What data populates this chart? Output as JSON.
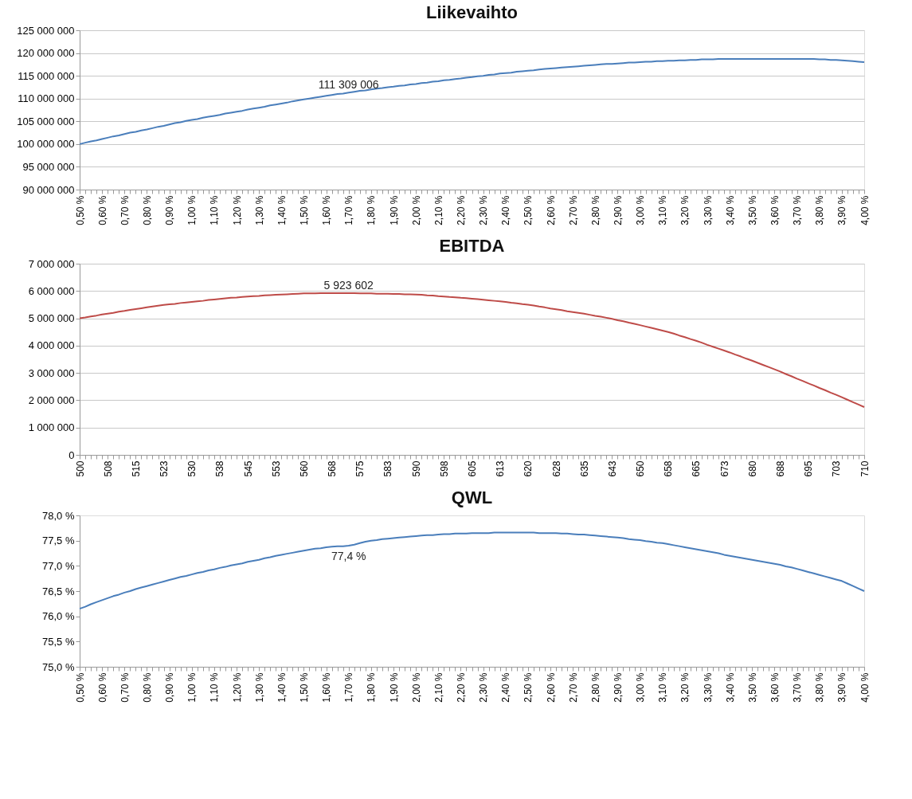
{
  "chart_data": [
    {
      "type": "line",
      "title": "Liikevaihto",
      "categories": [
        "0,50 %",
        null,
        null,
        null,
        "0,60 %",
        null,
        null,
        null,
        "0,70 %",
        null,
        null,
        null,
        "0,80 %",
        null,
        null,
        null,
        "0,90 %",
        null,
        null,
        null,
        "1,00 %",
        null,
        null,
        null,
        "1,10 %",
        null,
        null,
        null,
        "1,20 %",
        null,
        null,
        null,
        "1,30 %",
        null,
        null,
        null,
        "1,40 %",
        null,
        null,
        null,
        "1,50 %",
        null,
        null,
        null,
        "1,60 %",
        null,
        null,
        null,
        "1,70 %",
        null,
        null,
        null,
        "1,80 %",
        null,
        null,
        null,
        "1,90 %",
        null,
        null,
        null,
        "2,00 %",
        null,
        null,
        null,
        "2,10 %",
        null,
        null,
        null,
        "2,20 %",
        null,
        null,
        null,
        "2,30 %",
        null,
        null,
        null,
        "2,40 %",
        null,
        null,
        null,
        "2,50 %",
        null,
        null,
        null,
        "2,60 %",
        null,
        null,
        null,
        "2,70 %",
        null,
        null,
        null,
        "2,80 %",
        null,
        null,
        null,
        "2,90 %",
        null,
        null,
        null,
        "3,00 %",
        null,
        null,
        null,
        "3,10 %",
        null,
        null,
        null,
        "3,20 %",
        null,
        null,
        null,
        "3,30 %",
        null,
        null,
        null,
        "3,40 %",
        null,
        null,
        null,
        "3,50 %",
        null,
        null,
        null,
        "3,60 %",
        null,
        null,
        null,
        "3,70 %",
        null,
        null,
        null,
        "3,80 %",
        null,
        null,
        null,
        "3,90 %",
        null,
        null,
        null,
        "4,00 %"
      ],
      "series": [
        {
          "color": "#4a7ebb",
          "values": [
            100000000,
            100300000,
            100600000,
            100800000,
            101100000,
            101400000,
            101700000,
            101900000,
            102200000,
            102500000,
            102700000,
            103000000,
            103200000,
            103500000,
            103800000,
            104000000,
            104300000,
            104600000,
            104800000,
            105100000,
            105300000,
            105500000,
            105800000,
            106000000,
            106200000,
            106400000,
            106700000,
            106900000,
            107100000,
            107300000,
            107600000,
            107800000,
            108000000,
            108200000,
            108500000,
            108700000,
            108900000,
            109100000,
            109400000,
            109600000,
            109800000,
            110000000,
            110200000,
            110400000,
            110600000,
            110800000,
            111000000,
            111100000,
            111309006,
            111500000,
            111700000,
            111800000,
            112000000,
            112200000,
            112300000,
            112500000,
            112600000,
            112800000,
            112900000,
            113100000,
            113200000,
            113400000,
            113500000,
            113700000,
            113800000,
            114000000,
            114100000,
            114300000,
            114400000,
            114600000,
            114700000,
            114900000,
            115000000,
            115200000,
            115300000,
            115500000,
            115600000,
            115700000,
            115900000,
            116000000,
            116100000,
            116200000,
            116400000,
            116500000,
            116600000,
            116700000,
            116800000,
            116900000,
            117000000,
            117100000,
            117200000,
            117300000,
            117400000,
            117500000,
            117600000,
            117600000,
            117700000,
            117800000,
            117900000,
            117900000,
            118000000,
            118100000,
            118100000,
            118200000,
            118200000,
            118300000,
            118300000,
            118400000,
            118400000,
            118500000,
            118500000,
            118600000,
            118600000,
            118600000,
            118700000,
            118700000,
            118700000,
            118700000,
            118700000,
            118700000,
            118700000,
            118700000,
            118700000,
            118700000,
            118700000,
            118700000,
            118700000,
            118700000,
            118700000,
            118700000,
            118700000,
            118700000,
            118600000,
            118600000,
            118500000,
            118500000,
            118400000,
            118300000,
            118200000,
            118100000,
            118000000
          ],
          "value_labels": [
            null,
            null,
            null,
            null,
            null,
            null,
            null,
            null,
            null,
            null,
            null,
            null,
            null,
            null,
            null,
            null,
            null,
            null,
            null,
            null,
            null,
            null,
            null,
            null,
            null,
            null,
            null,
            null,
            null,
            null,
            null,
            null,
            null,
            null,
            null,
            null,
            null,
            null,
            null,
            null,
            null,
            null,
            null,
            null,
            null,
            null,
            null,
            null,
            "111 309 006",
            null,
            null,
            null,
            null,
            null,
            null,
            null,
            null,
            null,
            null,
            null,
            null,
            null,
            null,
            null,
            null,
            null,
            null,
            null,
            null,
            null,
            null,
            null,
            null,
            null,
            null,
            null,
            null,
            null,
            null,
            null,
            null,
            null,
            null,
            null,
            null,
            null,
            null,
            null,
            null,
            null,
            null,
            null,
            null,
            null,
            null,
            null,
            null,
            null,
            null,
            null,
            null,
            null,
            null,
            null,
            null,
            null,
            null,
            null,
            null,
            null,
            null,
            null,
            null,
            null,
            null,
            null,
            null,
            null,
            null,
            null,
            null,
            null,
            null,
            null,
            null,
            null,
            null,
            null,
            null,
            null,
            null,
            null,
            null,
            null,
            null,
            null,
            null,
            null,
            null,
            null,
            null
          ]
        }
      ],
      "ylim": [
        90000000,
        125000000
      ],
      "yticks": [
        {
          "value": 90000000,
          "label": "90 000 000"
        },
        {
          "value": 95000000,
          "label": "95 000 000"
        },
        {
          "value": 100000000,
          "label": "100 000 000"
        },
        {
          "value": 105000000,
          "label": "105 000 000"
        },
        {
          "value": 110000000,
          "label": "110 000 000"
        },
        {
          "value": 115000000,
          "label": "115 000 000"
        },
        {
          "value": 120000000,
          "label": "120 000 000"
        },
        {
          "value": 125000000,
          "label": "125 000 000"
        }
      ],
      "grid": "y"
    },
    {
      "type": "line",
      "title": "EBITDA",
      "categories": [
        "500",
        null,
        null,
        null,
        null,
        "508",
        null,
        null,
        null,
        null,
        "515",
        null,
        null,
        null,
        null,
        "523",
        null,
        null,
        null,
        null,
        "530",
        null,
        null,
        null,
        null,
        "538",
        null,
        null,
        null,
        null,
        "545",
        null,
        null,
        null,
        null,
        "553",
        null,
        null,
        null,
        null,
        "560",
        null,
        null,
        null,
        null,
        "568",
        null,
        null,
        null,
        null,
        "575",
        null,
        null,
        null,
        null,
        "583",
        null,
        null,
        null,
        null,
        "590",
        null,
        null,
        null,
        null,
        "598",
        null,
        null,
        null,
        null,
        "605",
        null,
        null,
        null,
        null,
        "613",
        null,
        null,
        null,
        null,
        "620",
        null,
        null,
        null,
        null,
        "628",
        null,
        null,
        null,
        null,
        "635",
        null,
        null,
        null,
        null,
        "643",
        null,
        null,
        null,
        null,
        "650",
        null,
        null,
        null,
        null,
        "658",
        null,
        null,
        null,
        null,
        "665",
        null,
        null,
        null,
        null,
        "673",
        null,
        null,
        null,
        null,
        "680",
        null,
        null,
        null,
        null,
        "688",
        null,
        null,
        null,
        null,
        "695",
        null,
        null,
        null,
        null,
        "703",
        null,
        null,
        null,
        null,
        "710"
      ],
      "series": [
        {
          "color": "#be4b48",
          "values": [
            5000000,
            5030000,
            5070000,
            5100000,
            5140000,
            5170000,
            5200000,
            5240000,
            5270000,
            5310000,
            5340000,
            5370000,
            5400000,
            5430000,
            5460000,
            5490000,
            5510000,
            5530000,
            5560000,
            5580000,
            5600000,
            5620000,
            5640000,
            5670000,
            5690000,
            5710000,
            5730000,
            5750000,
            5760000,
            5780000,
            5800000,
            5810000,
            5820000,
            5840000,
            5850000,
            5860000,
            5870000,
            5880000,
            5890000,
            5900000,
            5910000,
            5910000,
            5910000,
            5920000,
            5920000,
            5920000,
            5920000,
            5920000,
            5923602,
            5920000,
            5910000,
            5910000,
            5910000,
            5900000,
            5900000,
            5900000,
            5890000,
            5890000,
            5880000,
            5880000,
            5870000,
            5860000,
            5840000,
            5830000,
            5810000,
            5800000,
            5780000,
            5770000,
            5750000,
            5740000,
            5720000,
            5700000,
            5680000,
            5660000,
            5640000,
            5620000,
            5600000,
            5570000,
            5550000,
            5520000,
            5500000,
            5470000,
            5430000,
            5400000,
            5360000,
            5330000,
            5300000,
            5260000,
            5230000,
            5200000,
            5170000,
            5130000,
            5090000,
            5060000,
            5020000,
            4980000,
            4930000,
            4890000,
            4840000,
            4800000,
            4750000,
            4700000,
            4650000,
            4600000,
            4550000,
            4500000,
            4440000,
            4370000,
            4310000,
            4240000,
            4180000,
            4110000,
            4030000,
            3960000,
            3890000,
            3820000,
            3750000,
            3670000,
            3600000,
            3520000,
            3450000,
            3370000,
            3290000,
            3210000,
            3130000,
            3050000,
            2960000,
            2880000,
            2790000,
            2710000,
            2620000,
            2540000,
            2450000,
            2370000,
            2280000,
            2200000,
            2110000,
            2020000,
            1930000,
            1840000,
            1750000
          ],
          "value_labels": [
            null,
            null,
            null,
            null,
            null,
            null,
            null,
            null,
            null,
            null,
            null,
            null,
            null,
            null,
            null,
            null,
            null,
            null,
            null,
            null,
            null,
            null,
            null,
            null,
            null,
            null,
            null,
            null,
            null,
            null,
            null,
            null,
            null,
            null,
            null,
            null,
            null,
            null,
            null,
            null,
            null,
            null,
            null,
            null,
            null,
            null,
            null,
            null,
            "5 923 602",
            null,
            null,
            null,
            null,
            null,
            null,
            null,
            null,
            null,
            null,
            null,
            null,
            null,
            null,
            null,
            null,
            null,
            null,
            null,
            null,
            null,
            null,
            null,
            null,
            null,
            null,
            null,
            null,
            null,
            null,
            null,
            null,
            null,
            null,
            null,
            null,
            null,
            null,
            null,
            null,
            null,
            null,
            null,
            null,
            null,
            null,
            null,
            null,
            null,
            null,
            null,
            null,
            null,
            null,
            null,
            null,
            null,
            null,
            null,
            null,
            null,
            null,
            null,
            null,
            null,
            null,
            null,
            null,
            null,
            null,
            null,
            null,
            null,
            null,
            null,
            null,
            null,
            null,
            null,
            null,
            null,
            null,
            null,
            null,
            null,
            null,
            null,
            null,
            null,
            null,
            null,
            null
          ]
        }
      ],
      "ylim": [
        0,
        7000000
      ],
      "yticks": [
        0,
        {
          "value": 1000000,
          "label": "1 000 000"
        },
        {
          "value": 2000000,
          "label": "2 000 000"
        },
        {
          "value": 3000000,
          "label": "3 000 000"
        },
        {
          "value": 4000000,
          "label": "4 000 000"
        },
        {
          "value": 5000000,
          "label": "5 000 000"
        },
        {
          "value": 6000000,
          "label": "6 000 000"
        },
        {
          "value": 7000000,
          "label": "7 000 000"
        }
      ],
      "grid": "y"
    },
    {
      "type": "line",
      "title": "QWL",
      "categories": [
        "0,50 %",
        null,
        null,
        null,
        "0,60 %",
        null,
        null,
        null,
        "0,70 %",
        null,
        null,
        null,
        "0,80 %",
        null,
        null,
        null,
        "0,90 %",
        null,
        null,
        null,
        "1,00 %",
        null,
        null,
        null,
        "1,10 %",
        null,
        null,
        null,
        "1,20 %",
        null,
        null,
        null,
        "1,30 %",
        null,
        null,
        null,
        "1,40 %",
        null,
        null,
        null,
        "1,50 %",
        null,
        null,
        null,
        "1,60 %",
        null,
        null,
        null,
        "1,70 %",
        null,
        null,
        null,
        "1,80 %",
        null,
        null,
        null,
        "1,90 %",
        null,
        null,
        null,
        "2,00 %",
        null,
        null,
        null,
        "2,10 %",
        null,
        null,
        null,
        "2,20 %",
        null,
        null,
        null,
        "2,30 %",
        null,
        null,
        null,
        "2,40 %",
        null,
        null,
        null,
        "2,50 %",
        null,
        null,
        null,
        "2,60 %",
        null,
        null,
        null,
        "2,70 %",
        null,
        null,
        null,
        "2,80 %",
        null,
        null,
        null,
        "2,90 %",
        null,
        null,
        null,
        "3,00 %",
        null,
        null,
        null,
        "3,10 %",
        null,
        null,
        null,
        "3,20 %",
        null,
        null,
        null,
        "3,30 %",
        null,
        null,
        null,
        "3,40 %",
        null,
        null,
        null,
        "3,50 %",
        null,
        null,
        null,
        "3,60 %",
        null,
        null,
        null,
        "3,70 %",
        null,
        null,
        null,
        "3,80 %",
        null,
        null,
        null,
        "3,90 %",
        null,
        null,
        null,
        "4,00 %"
      ],
      "series": [
        {
          "color": "#4a7ebb",
          "values": [
            76.15,
            76.19,
            76.24,
            76.28,
            76.32,
            76.36,
            76.4,
            76.43,
            76.47,
            76.5,
            76.54,
            76.57,
            76.6,
            76.63,
            76.66,
            76.69,
            76.72,
            76.75,
            76.78,
            76.8,
            76.83,
            76.86,
            76.88,
            76.91,
            76.93,
            76.96,
            76.98,
            77.01,
            77.03,
            77.05,
            77.08,
            77.1,
            77.12,
            77.15,
            77.17,
            77.2,
            77.22,
            77.24,
            77.26,
            77.28,
            77.3,
            77.32,
            77.34,
            77.35,
            77.37,
            77.38,
            77.39,
            77.39,
            77.4,
            77.42,
            77.45,
            77.48,
            77.5,
            77.51,
            77.53,
            77.54,
            77.55,
            77.56,
            77.57,
            77.58,
            77.59,
            77.6,
            77.61,
            77.61,
            77.62,
            77.63,
            77.63,
            77.64,
            77.64,
            77.64,
            77.65,
            77.65,
            77.65,
            77.65,
            77.66,
            77.66,
            77.66,
            77.66,
            77.66,
            77.66,
            77.66,
            77.66,
            77.65,
            77.65,
            77.65,
            77.65,
            77.64,
            77.64,
            77.63,
            77.62,
            77.62,
            77.61,
            77.6,
            77.59,
            77.58,
            77.57,
            77.56,
            77.55,
            77.53,
            77.52,
            77.51,
            77.49,
            77.48,
            77.46,
            77.45,
            77.43,
            77.41,
            77.39,
            77.37,
            77.35,
            77.33,
            77.31,
            77.29,
            77.27,
            77.25,
            77.22,
            77.2,
            77.18,
            77.16,
            77.14,
            77.12,
            77.1,
            77.08,
            77.06,
            77.04,
            77.02,
            76.99,
            76.97,
            76.94,
            76.91,
            76.88,
            76.85,
            76.82,
            76.79,
            76.76,
            76.73,
            76.7,
            76.65,
            76.6,
            76.55,
            76.5
          ],
          "value_labels": [
            null,
            null,
            null,
            null,
            null,
            null,
            null,
            null,
            null,
            null,
            null,
            null,
            null,
            null,
            null,
            null,
            null,
            null,
            null,
            null,
            null,
            null,
            null,
            null,
            null,
            null,
            null,
            null,
            null,
            null,
            null,
            null,
            null,
            null,
            null,
            null,
            null,
            null,
            null,
            null,
            null,
            null,
            null,
            null,
            null,
            null,
            null,
            null,
            "77,4 %",
            null,
            null,
            null,
            null,
            null,
            null,
            null,
            null,
            null,
            null,
            null,
            null,
            null,
            null,
            null,
            null,
            null,
            null,
            null,
            null,
            null,
            null,
            null,
            null,
            null,
            null,
            null,
            null,
            null,
            null,
            null,
            null,
            null,
            null,
            null,
            null,
            null,
            null,
            null,
            null,
            null,
            null,
            null,
            null,
            null,
            null,
            null,
            null,
            null,
            null,
            null,
            null,
            null,
            null,
            null,
            null,
            null,
            null,
            null,
            null,
            null,
            null,
            null,
            null,
            null,
            null,
            null,
            null,
            null,
            null,
            null,
            null,
            null,
            null,
            null,
            null,
            null,
            null,
            null,
            null,
            null,
            null,
            null,
            null,
            null,
            null,
            null,
            null,
            null,
            null,
            null,
            null
          ]
        }
      ],
      "ylim": [
        75,
        78
      ],
      "yticks": [
        {
          "value": 75,
          "label": "75,0 %"
        },
        {
          "value": 75.5,
          "label": "75,5 %"
        },
        {
          "value": 76,
          "label": "76,0 %"
        },
        {
          "value": 76.5,
          "label": "76,5 %"
        },
        {
          "value": 77,
          "label": "77,0 %"
        },
        {
          "value": 77.5,
          "label": "77,5 %"
        },
        {
          "value": 78,
          "label": "78,0 %"
        }
      ],
      "grid": false
    }
  ]
}
